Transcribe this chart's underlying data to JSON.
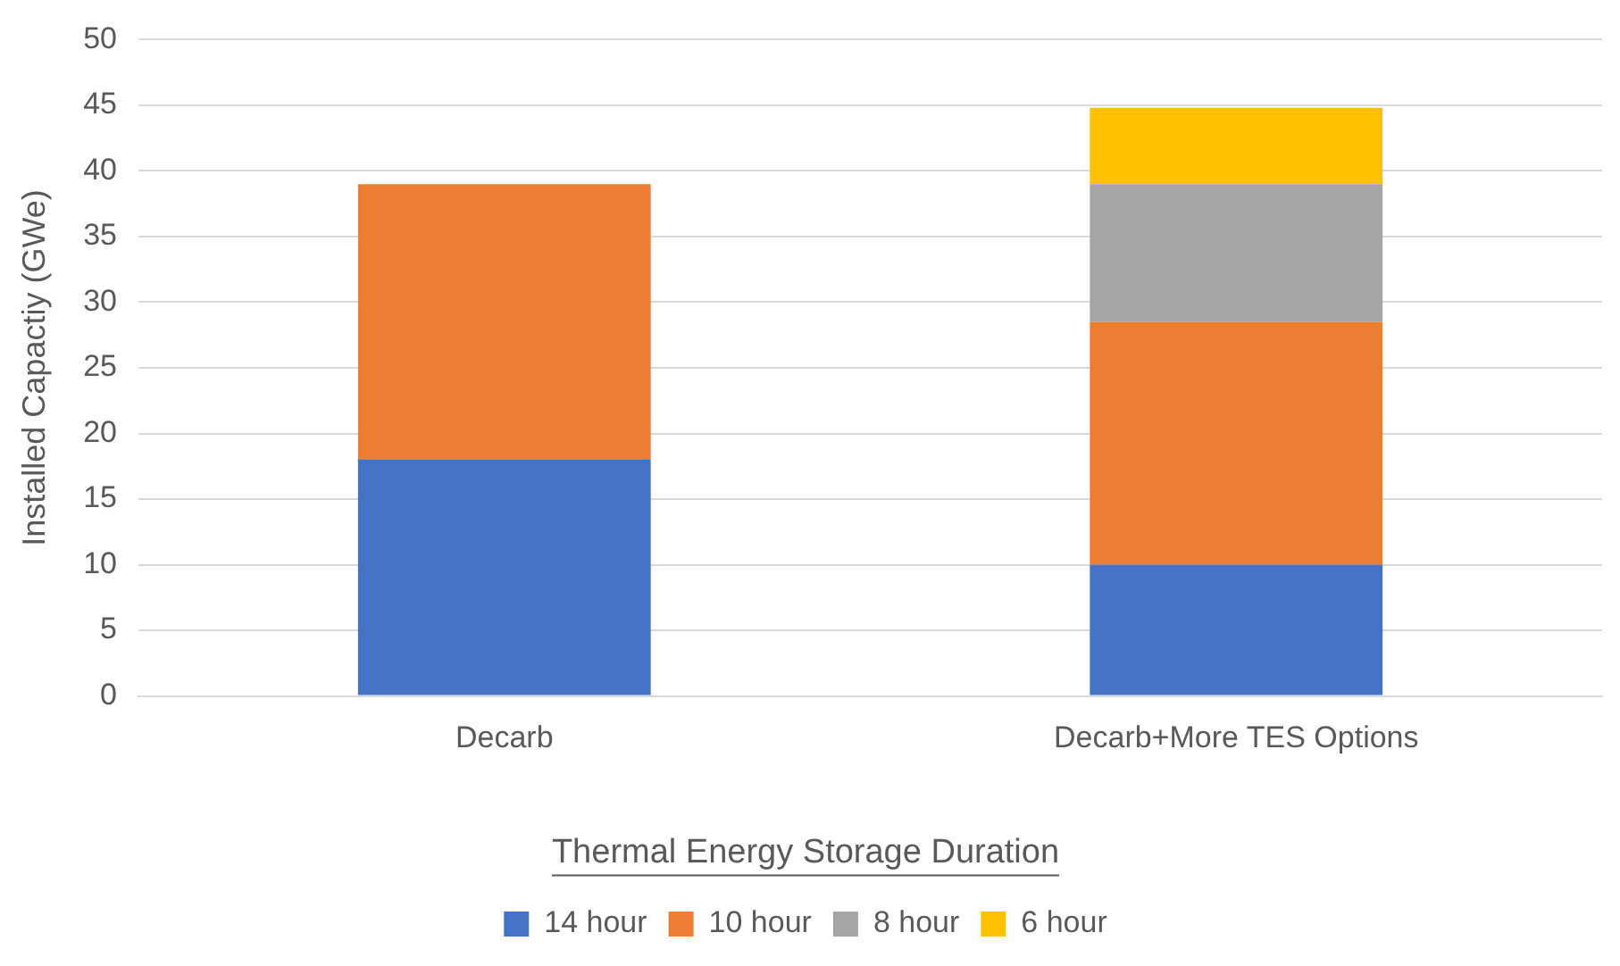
{
  "chart_data": {
    "type": "bar",
    "stacked": true,
    "ylabel": "Installed Capactiy (GWe)",
    "legend_title": "Thermal Energy Storage Duration",
    "legend": "bottom",
    "grid": "y",
    "categories": [
      "Decarb",
      "Decarb+More TES Options"
    ],
    "ylim": [
      0,
      50
    ],
    "yticks": [
      0,
      5,
      10,
      15,
      20,
      25,
      30,
      35,
      40,
      45,
      50
    ],
    "series": [
      {
        "name": "14 hour",
        "color": "#4472c4",
        "values": [
          18,
          10
        ]
      },
      {
        "name": "10 hour",
        "color": "#ed7d31",
        "values": [
          21,
          18.5
        ]
      },
      {
        "name": "8 hour",
        "color": "#a5a5a5",
        "values": [
          null,
          10.5
        ]
      },
      {
        "name": "6 hour",
        "color": "#ffc000",
        "values": [
          null,
          5.8
        ]
      }
    ]
  }
}
